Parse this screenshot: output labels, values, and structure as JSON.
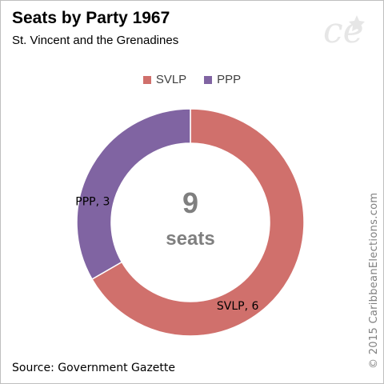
{
  "header": {
    "title": "Seats by Party 1967",
    "subtitle": "St. Vincent and the Grenadines"
  },
  "logo": {
    "icon": "ce-logo",
    "text": "ce"
  },
  "legend": {
    "items": [
      {
        "label": "SVLP",
        "color": "#d0706c"
      },
      {
        "label": "PPP",
        "color": "#8064a2"
      }
    ]
  },
  "center": {
    "total": "9",
    "unit": "seats"
  },
  "footer": {
    "source": "Source: Government Gazette",
    "copyright": "© 2015 CaribbeanElections.com"
  },
  "chart_data": {
    "type": "pie",
    "donut": true,
    "title": "Seats by Party 1967",
    "subtitle": "St. Vincent and the Grenadines",
    "legend": "top",
    "slices": [
      {
        "label": "SVLP",
        "value": 6,
        "data_label": "SVLP, 6",
        "color": "#d0706c"
      },
      {
        "label": "PPP",
        "value": 3,
        "data_label": "PPP, 3",
        "color": "#8064a2"
      }
    ],
    "center_text": "9 seats"
  }
}
